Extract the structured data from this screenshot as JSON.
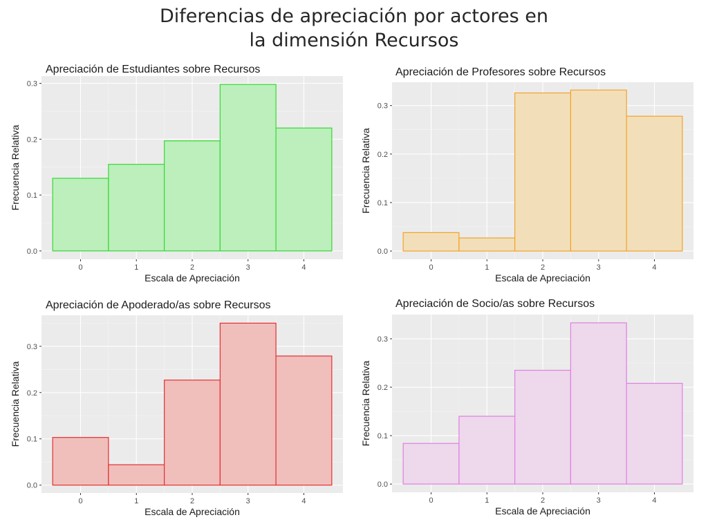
{
  "page": {
    "title_line1": "Diferencias de apreciación por actores en",
    "title_line2": "la dimensión Recursos"
  },
  "chart_data": [
    {
      "type": "bar",
      "title": "Apreciación de Estudiantes sobre Recursos",
      "xlabel": "Escala de Apreciación",
      "ylabel": "Frecuencia Relativa",
      "categories": [
        "0",
        "1",
        "2",
        "3",
        "4"
      ],
      "values": [
        0.13,
        0.155,
        0.197,
        0.298,
        0.22
      ],
      "yticks": [
        "0.0",
        "0.1",
        "0.2",
        "0.3"
      ],
      "ylim": [
        -0.015,
        0.313
      ],
      "grid": true,
      "fill": "#bcefbb",
      "stroke": "#33d933"
    },
    {
      "type": "bar",
      "title": "Apreciación de Profesores sobre Recursos",
      "xlabel": "Escala de Apreciación",
      "ylabel": "Frecuencia Relativa",
      "categories": [
        "0",
        "1",
        "2",
        "3",
        "4"
      ],
      "values": [
        0.038,
        0.027,
        0.326,
        0.332,
        0.278
      ],
      "yticks": [
        "0.0",
        "0.1",
        "0.2",
        "0.3"
      ],
      "ylim": [
        -0.017,
        0.348
      ],
      "grid": true,
      "fill": "#f2dfba",
      "stroke": "#f2a227"
    },
    {
      "type": "bar",
      "title": "Apreciación de Apoderado/as sobre Recursos",
      "xlabel": "Escala de Apreciación",
      "ylabel": "Frecuencia Relativa",
      "categories": [
        "0",
        "1",
        "2",
        "3",
        "4"
      ],
      "values": [
        0.103,
        0.044,
        0.227,
        0.35,
        0.279
      ],
      "yticks": [
        "0.0",
        "0.1",
        "0.2",
        "0.3"
      ],
      "ylim": [
        -0.017,
        0.367
      ],
      "grid": true,
      "fill": "#f0bfbc",
      "stroke": "#e52e2e"
    },
    {
      "type": "bar",
      "title": "Apreciación de Socio/as sobre Recursos",
      "xlabel": "Escala de Apreciación",
      "ylabel": "Frecuencia Relativa",
      "categories": [
        "0",
        "1",
        "2",
        "3",
        "4"
      ],
      "values": [
        0.084,
        0.14,
        0.235,
        0.333,
        0.208
      ],
      "yticks": [
        "0.0",
        "0.1",
        "0.2",
        "0.3"
      ],
      "ylim": [
        -0.017,
        0.35
      ],
      "grid": true,
      "fill": "#eed8ec",
      "stroke": "#df7fe0"
    }
  ]
}
